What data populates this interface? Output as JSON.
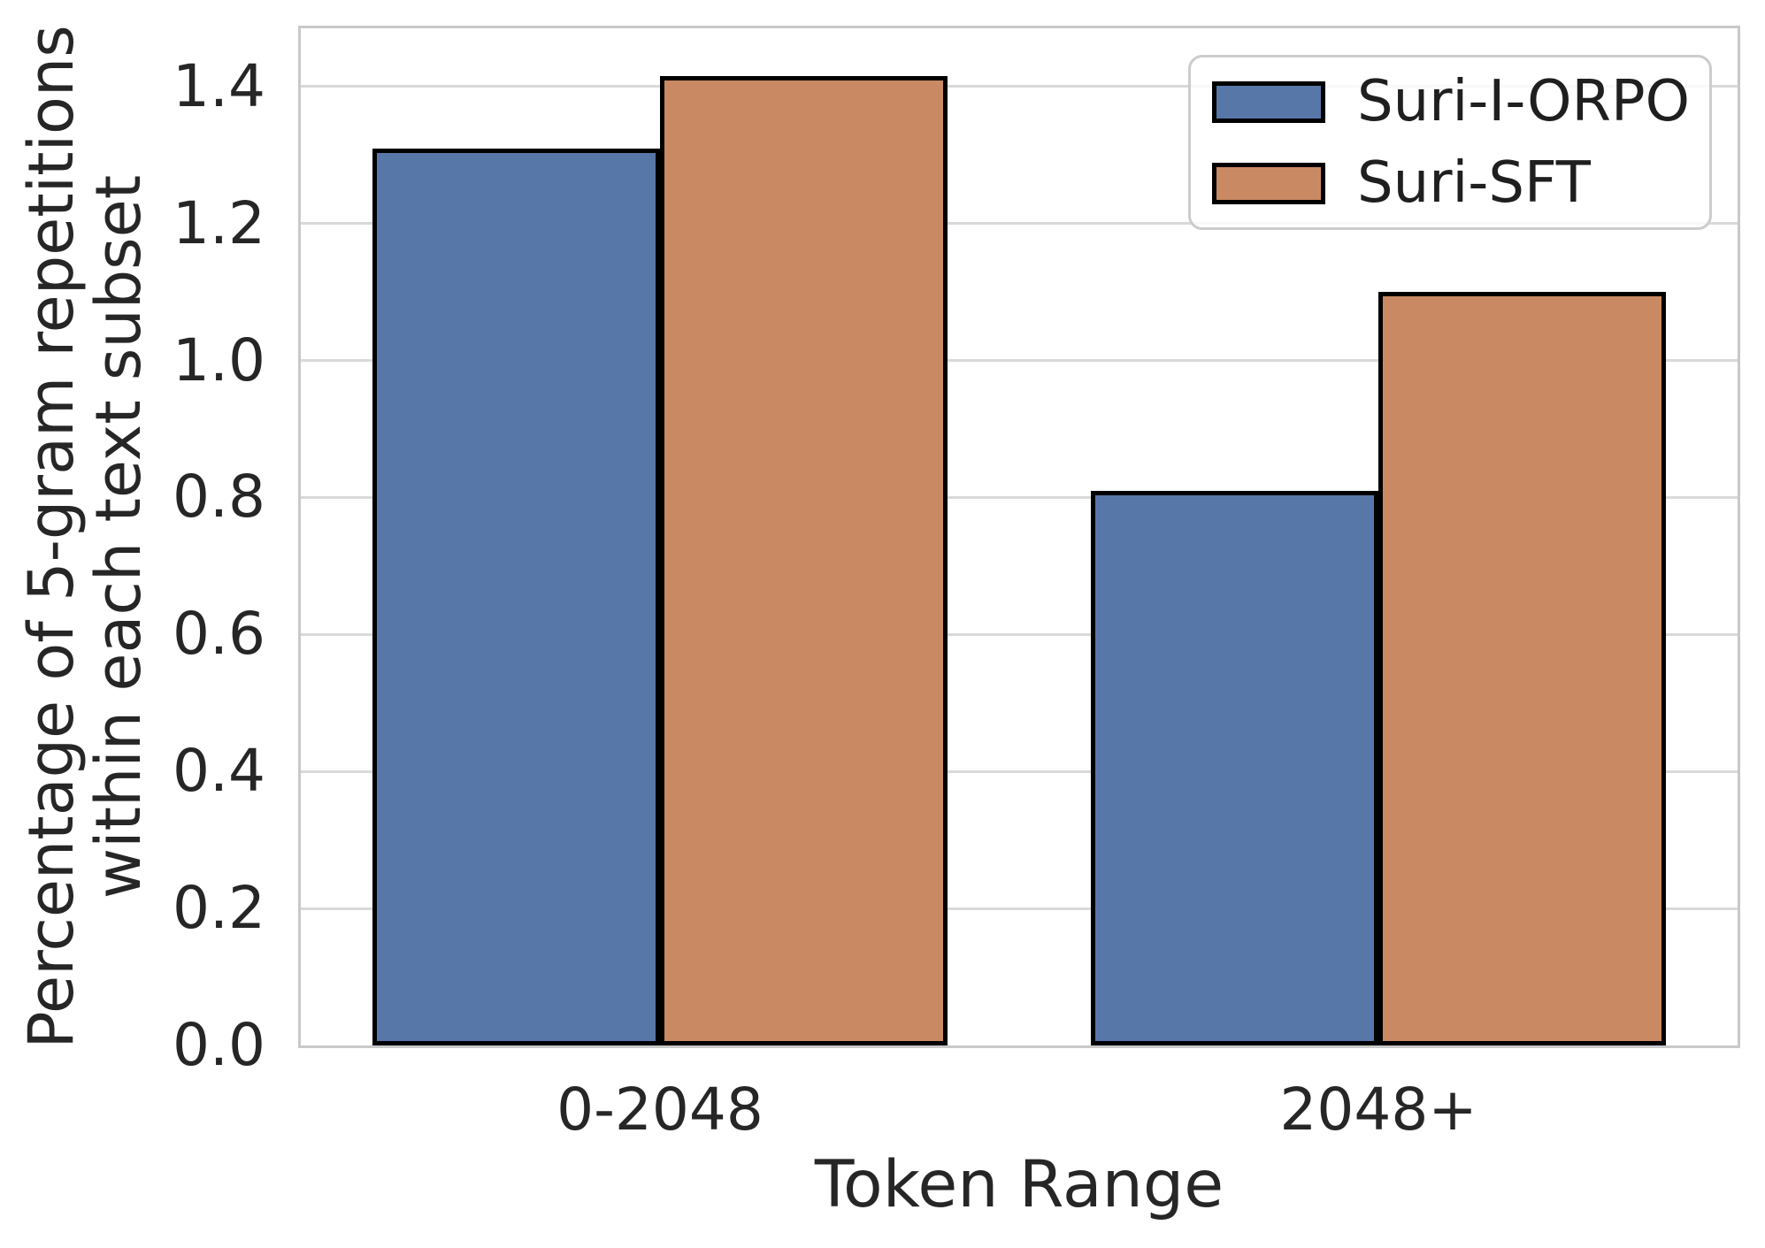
{
  "chart_data": {
    "type": "bar",
    "title": "",
    "xlabel": "Token Range",
    "ylabel_lines": [
      "Percentage of 5-gram repetitions",
      "within each text subset"
    ],
    "categories": [
      "0-2048",
      "2048+"
    ],
    "series": [
      {
        "name": "Suri-I-ORPO",
        "color": "#5777A8",
        "values": [
          1.31,
          0.81
        ]
      },
      {
        "name": "Suri-SFT",
        "color": "#C98A63",
        "values": [
          1.415,
          1.1
        ]
      }
    ],
    "ylim": [
      0,
      1.485
    ],
    "yticks": [
      0.0,
      0.2,
      0.4,
      0.6,
      0.8,
      1.0,
      1.2,
      1.4
    ],
    "ytick_labels": [
      "0.0",
      "0.2",
      "0.4",
      "0.6",
      "0.8",
      "1.0",
      "1.2",
      "1.4"
    ],
    "grid": "horizontal-only",
    "legend_position": "upper right",
    "bar_edge_color": "#000000",
    "bar_group_width_fraction": 0.8
  }
}
